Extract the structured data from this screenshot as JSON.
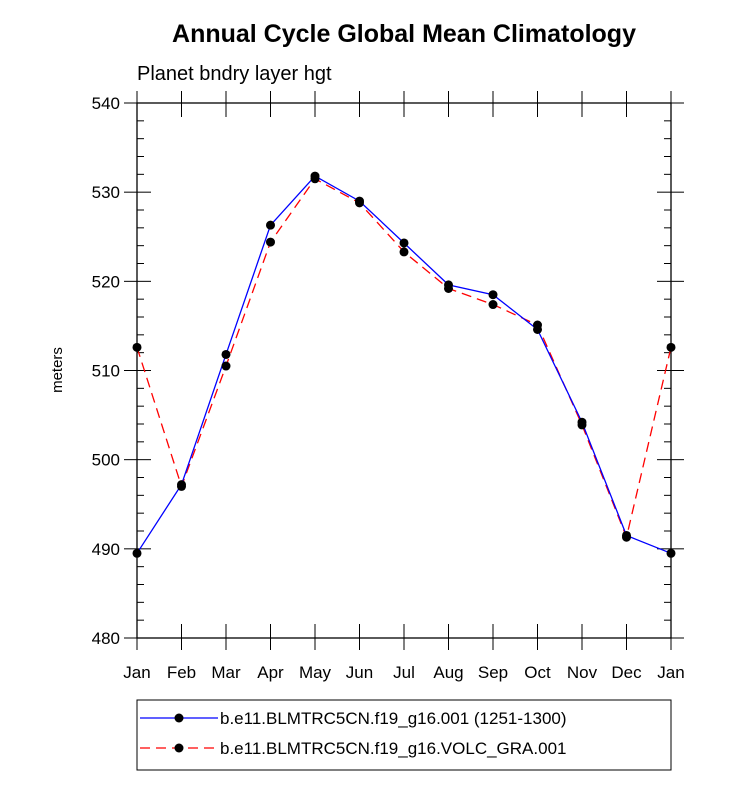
{
  "chart_data": {
    "type": "line",
    "title": "Annual Cycle Global Mean Climatology",
    "subtitle": "Planet bndry layer hgt",
    "ylabel": "meters",
    "xlabel": "",
    "ylim": [
      480,
      540
    ],
    "yticks": [
      480,
      490,
      500,
      510,
      520,
      530,
      540
    ],
    "yticks_labels": [
      "480",
      "490",
      "500",
      "510",
      "520",
      "530",
      "540"
    ],
    "grid": false,
    "categories": [
      "Jan",
      "Feb",
      "Mar",
      "Apr",
      "May",
      "Jun",
      "Jul",
      "Aug",
      "Sep",
      "Oct",
      "Nov",
      "Dec",
      "Jan"
    ],
    "series": [
      {
        "name": "b.e11.BLMTRC5CN.f19_g16.001 (1251-1300)",
        "color": "#0000ff",
        "line_style": "solid",
        "marker": "filled-circle",
        "values": [
          489.5,
          497.2,
          511.8,
          526.3,
          531.8,
          529.0,
          524.3,
          519.6,
          518.5,
          514.6,
          504.2,
          491.5,
          489.5
        ]
      },
      {
        "name": "b.e11.BLMTRC5CN.f19_g16.VOLC_GRA.001",
        "color": "#ff0000",
        "line_style": "dashed",
        "marker": "filled-circle",
        "values": [
          512.6,
          497.0,
          510.5,
          524.4,
          531.5,
          528.8,
          523.3,
          519.2,
          517.4,
          515.1,
          503.9,
          491.3,
          512.6
        ]
      }
    ],
    "legend_position": "bottom"
  }
}
